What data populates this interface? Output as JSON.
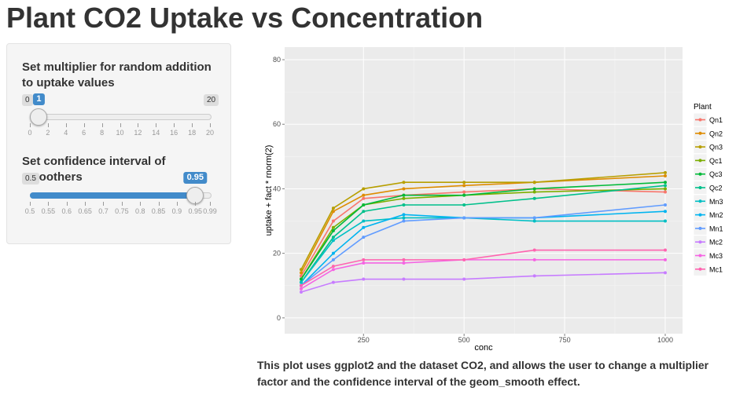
{
  "title": "Plant CO2 Uptake vs Concentration",
  "sidebar": {
    "sliders": [
      {
        "label": "Set multiplier for random addition to uptake values",
        "min": 0,
        "max": 20,
        "value": 1,
        "ticks": [
          0,
          2,
          4,
          6,
          8,
          10,
          12,
          14,
          16,
          18,
          20
        ]
      },
      {
        "label": "Set confidence interval of smoothers",
        "min": 0.5,
        "max": 0.99,
        "value": 0.95,
        "ticks": [
          0.5,
          0.55,
          0.6,
          0.65,
          0.7,
          0.75,
          0.8,
          0.85,
          0.9,
          0.95,
          0.99
        ]
      }
    ]
  },
  "chart_data": {
    "type": "line",
    "x_label": "conc",
    "y_label": "uptake + fact * rnorm(2)",
    "legend_title": "Plant",
    "legend": "right",
    "grid": true,
    "x": [
      95,
      175,
      250,
      350,
      500,
      675,
      1000
    ],
    "xlim": [
      54,
      1043
    ],
    "xticks": [
      250,
      500,
      750,
      1000
    ],
    "ylim": [
      -4.9,
      83.9
    ],
    "yticks": [
      0,
      20,
      40,
      60,
      80
    ],
    "series": [
      {
        "name": "Qn1",
        "color": "#F8766D",
        "values": [
          13,
          30,
          37,
          38,
          39,
          40,
          39
        ]
      },
      {
        "name": "Qn2",
        "color": "#DE8C00",
        "values": [
          14,
          33,
          38,
          40,
          41,
          42,
          44
        ]
      },
      {
        "name": "Qn3",
        "color": "#B79F00",
        "values": [
          15,
          34,
          40,
          42,
          42,
          42,
          45
        ]
      },
      {
        "name": "Qc1",
        "color": "#7CAE00",
        "values": [
          12,
          28,
          35,
          37,
          38,
          39,
          40
        ]
      },
      {
        "name": "Qc3",
        "color": "#00BA38",
        "values": [
          12,
          27,
          35,
          38,
          38,
          40,
          42
        ]
      },
      {
        "name": "Qc2",
        "color": "#00C08B",
        "values": [
          11,
          25,
          33,
          35,
          35,
          37,
          41
        ]
      },
      {
        "name": "Mn3",
        "color": "#00BFC4",
        "values": [
          11,
          24,
          30,
          31,
          31,
          30,
          30
        ]
      },
      {
        "name": "Mn2",
        "color": "#00B4F0",
        "values": [
          10,
          20,
          28,
          32,
          31,
          31,
          33
        ]
      },
      {
        "name": "Mn1",
        "color": "#619CFF",
        "values": [
          10,
          18,
          25,
          30,
          31,
          31,
          35
        ]
      },
      {
        "name": "Mc2",
        "color": "#C77CFF",
        "values": [
          8,
          11,
          12,
          12,
          12,
          13,
          14
        ]
      },
      {
        "name": "Mc3",
        "color": "#F564E3",
        "values": [
          9,
          15,
          17,
          17,
          18,
          18,
          18
        ]
      },
      {
        "name": "Mc1",
        "color": "#FF64B0",
        "values": [
          10,
          16,
          18,
          18,
          18,
          21,
          21
        ]
      }
    ]
  },
  "caption": "This plot uses ggplot2 and the dataset CO2, and allows the user to change a multiplier factor and the confidence interval of the geom_smooth effect."
}
